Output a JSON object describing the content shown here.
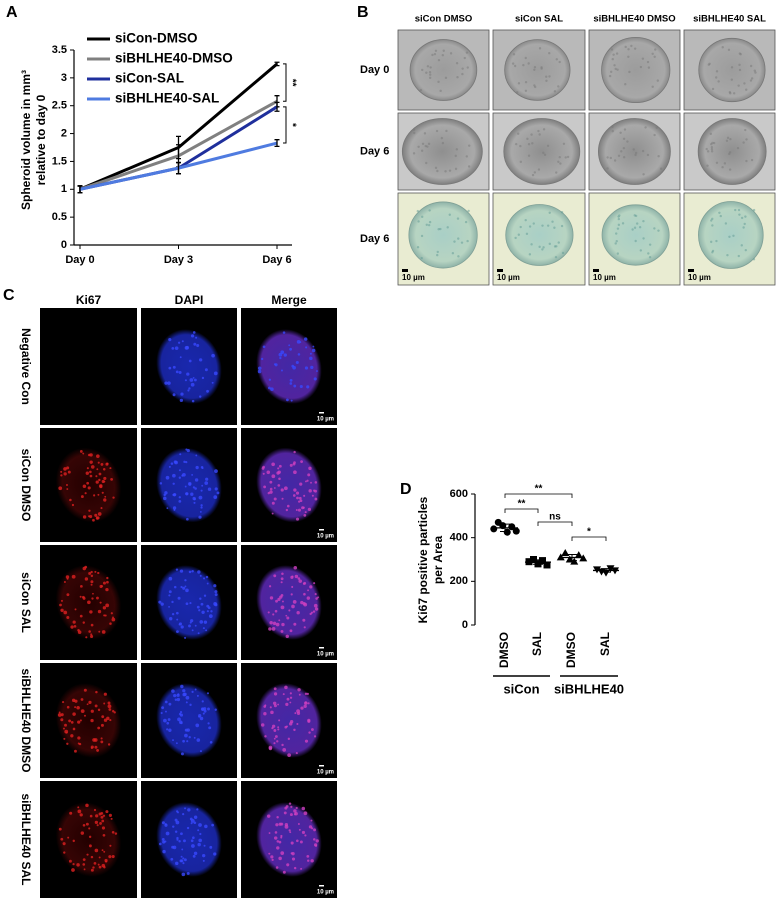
{
  "panel_labels": [
    "A",
    "B",
    "C",
    "D"
  ],
  "chart_data": [
    {
      "type": "line",
      "y_label": [
        "Spheroid volume in mm³",
        "relative to day 0"
      ],
      "categories": [
        "Day 0",
        "Day 3",
        "Day 6"
      ],
      "series": [
        {
          "name": "siCon-DMSO",
          "color": "#000000",
          "values": [
            1,
            1.75,
            3.25
          ],
          "errors": [
            0.06,
            0.2,
            0.03
          ]
        },
        {
          "name": "siBHLHE40-DMSO",
          "color": "#808080",
          "values": [
            1,
            1.6,
            2.58
          ],
          "errors": [
            0.06,
            0.2,
            0.1
          ]
        },
        {
          "name": "siCon-SAL",
          "color": "#1f2f9c",
          "values": [
            1,
            1.38,
            2.48
          ],
          "errors": [
            0.06,
            0.1,
            0.08
          ]
        },
        {
          "name": "siBHLHE40-SAL",
          "color": "#4f7be0",
          "values": [
            1,
            1.38,
            1.83
          ],
          "errors": [
            0.06,
            0.1,
            0.06
          ]
        }
      ],
      "ylim": [
        0,
        3.5
      ],
      "yticks": [
        0,
        0.5,
        1,
        1.5,
        2,
        2.5,
        3,
        3.5
      ],
      "annotations": [
        "**",
        "*"
      ],
      "legend": "top-left"
    },
    {
      "type": "dot",
      "y_label": [
        "Ki67 positive particles",
        "per Area"
      ],
      "categories": [
        "DMSO",
        "SAL",
        "DMSO",
        "SAL"
      ],
      "groups": [
        "siCon",
        "siBHLHE40"
      ],
      "points": [
        [
          440,
          470,
          455,
          425,
          450,
          430
        ],
        [
          290,
          300,
          280,
          295,
          275
        ],
        [
          310,
          330,
          300,
          290,
          320,
          305
        ],
        [
          255,
          245,
          240,
          260,
          250
        ]
      ],
      "means": [
        445,
        288,
        309,
        250
      ],
      "sd": [
        17,
        10,
        14,
        8
      ],
      "markers": [
        "circle",
        "square",
        "triangle",
        "triangle-down"
      ],
      "color": "#000000",
      "ylim": [
        0,
        600
      ],
      "yticks": [
        0,
        200,
        400,
        600
      ],
      "annotations": [
        "**",
        "**",
        "ns",
        "*"
      ]
    }
  ],
  "panel_b": {
    "columns": [
      "siCon DMSO",
      "siCon SAL",
      "siBHLHE40 DMSO",
      "siBHLHE40 SAL"
    ],
    "rows": [
      "Day 0",
      "Day 6",
      "Day 6"
    ],
    "scale_label": "10 µm"
  },
  "panel_c": {
    "columns": [
      "Ki67",
      "DAPI",
      "Merge"
    ],
    "rows": [
      "Negative Con",
      "siCon DMSO",
      "siCon SAL",
      "siBHLHE40 DMSO",
      "siBHLHE40 SAL"
    ],
    "scale_label": "10 µm"
  }
}
